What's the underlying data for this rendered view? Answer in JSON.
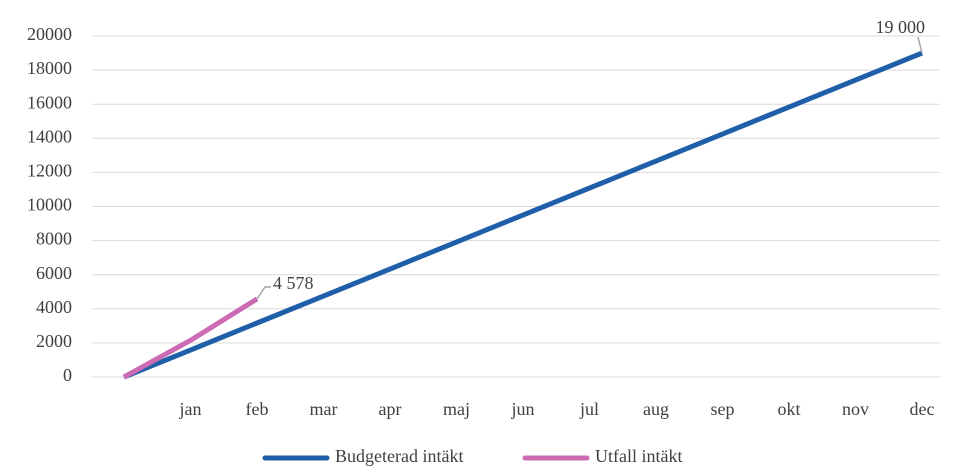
{
  "chart_data": {
    "type": "line",
    "categories": [
      null,
      "jan",
      "feb",
      "mar",
      "apr",
      "maj",
      "jun",
      "jul",
      "aug",
      "sep",
      "okt",
      "nov",
      "dec"
    ],
    "series": [
      {
        "name": "Budgeterad intäkt",
        "color": "#1f5ea8",
        "values": [
          0,
          1583,
          3167,
          4750,
          6333,
          7917,
          9500,
          11083,
          12667,
          14250,
          15833,
          17417,
          19000
        ],
        "value_labels": [
          null,
          null,
          null,
          null,
          null,
          null,
          null,
          null,
          null,
          null,
          null,
          null,
          "19 000"
        ]
      },
      {
        "name": "Utfall intäkt",
        "color": "#cc6bb3",
        "values": [
          0,
          2150,
          4578,
          null,
          null,
          null,
          null,
          null,
          null,
          null,
          null,
          null,
          null
        ],
        "value_labels": [
          null,
          null,
          "4 578",
          null,
          null,
          null,
          null,
          null,
          null,
          null,
          null,
          null,
          null
        ]
      }
    ],
    "ylim": [
      0,
      20000
    ],
    "yticks": [
      0,
      2000,
      4000,
      6000,
      8000,
      10000,
      12000,
      14000,
      16000,
      18000,
      20000
    ],
    "grid": true
  }
}
